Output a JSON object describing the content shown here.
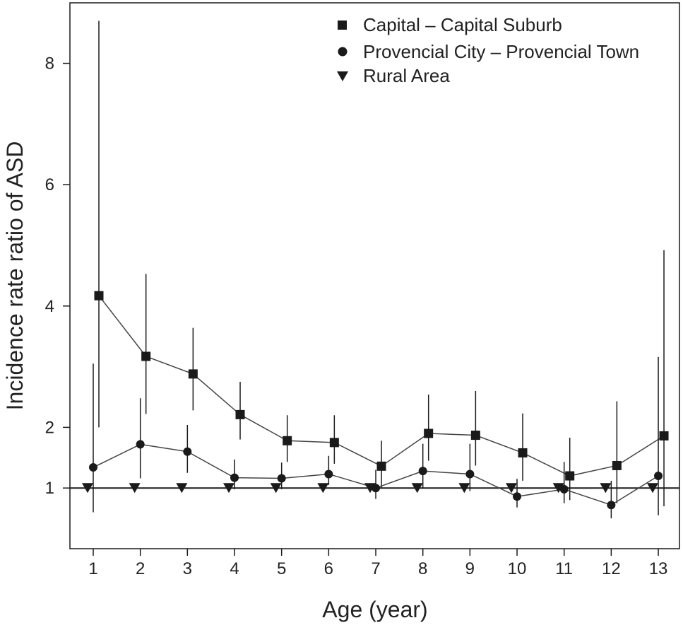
{
  "chart_data": {
    "type": "line",
    "xlabel": "Age (year)",
    "ylabel": "Incidence rate ratio of ASD",
    "x_ticks": [
      "1",
      "2",
      "3",
      "4",
      "5",
      "6",
      "7",
      "8",
      "9",
      "10",
      "11",
      "12",
      "13"
    ],
    "y_ticks": [
      "1",
      "2",
      "4",
      "6",
      "8"
    ],
    "xlim": [
      0.5,
      13.5
    ],
    "ylim": [
      0.0,
      8.8
    ],
    "grid": false,
    "legend_position": "top-right",
    "reference_line_y": 1,
    "series": [
      {
        "name": "Capital – Capital Suburb",
        "marker": "square",
        "x": [
          1,
          2,
          3,
          4,
          5,
          6,
          7,
          8,
          9,
          10,
          11,
          12,
          13
        ],
        "values": [
          4.17,
          3.17,
          2.88,
          2.21,
          1.78,
          1.75,
          1.36,
          1.9,
          1.87,
          1.58,
          1.2,
          1.37,
          1.86
        ],
        "lower": [
          2.0,
          2.22,
          2.28,
          1.8,
          1.43,
          1.4,
          1.0,
          1.45,
          1.37,
          1.12,
          0.8,
          0.75,
          0.7
        ],
        "upper": [
          8.7,
          4.53,
          3.64,
          2.75,
          2.2,
          2.2,
          1.78,
          2.54,
          2.6,
          2.23,
          1.83,
          2.43,
          4.92
        ]
      },
      {
        "name": "Provencial City – Provencial Town",
        "marker": "circle",
        "x": [
          1,
          2,
          3,
          4,
          5,
          6,
          7,
          8,
          9,
          10,
          11,
          12,
          13
        ],
        "values": [
          1.34,
          1.72,
          1.6,
          1.17,
          1.16,
          1.23,
          1.0,
          1.28,
          1.23,
          0.86,
          0.98,
          0.72,
          1.2
        ],
        "lower": [
          0.6,
          1.16,
          1.25,
          0.98,
          0.98,
          1.05,
          0.82,
          1.0,
          0.95,
          0.68,
          0.75,
          0.5,
          0.55
        ],
        "upper": [
          3.05,
          2.48,
          2.04,
          1.47,
          1.42,
          1.53,
          1.3,
          1.73,
          1.73,
          1.15,
          1.43,
          1.12,
          3.16
        ]
      },
      {
        "name": "Rural Area",
        "marker": "triangle-down",
        "x": [
          1,
          2,
          3,
          4,
          5,
          6,
          7,
          8,
          9,
          10,
          11,
          12,
          13
        ],
        "values": [
          1,
          1,
          1,
          1,
          1,
          1,
          1,
          1,
          1,
          1,
          1,
          1,
          1
        ]
      }
    ]
  },
  "colors": {
    "ink": "#1a1a1a",
    "line": "#444444",
    "background": "#ffffff"
  }
}
